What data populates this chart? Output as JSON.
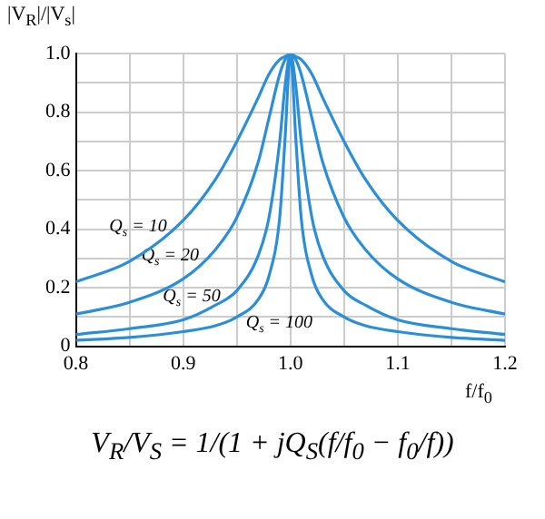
{
  "chart_data": {
    "type": "line",
    "xlabel": "f/f$_{0}$",
    "ylabel": "|V$_{R}$|/|V$_{s}$|",
    "x": [
      0.8,
      0.85,
      0.9,
      0.93,
      0.95,
      0.97,
      0.98,
      0.99,
      0.995,
      1.0,
      1.005,
      1.01,
      1.02,
      1.03,
      1.05,
      1.07,
      1.1,
      1.15,
      1.2
    ],
    "series": [
      {
        "name": "Q$_{s}$ = 10",
        "color": "#2a8fd8",
        "values": [
          0.22,
          0.29,
          0.43,
          0.57,
          0.7,
          0.85,
          0.93,
          0.98,
          0.99,
          1.0,
          0.99,
          0.98,
          0.93,
          0.85,
          0.7,
          0.57,
          0.43,
          0.29,
          0.22
        ]
      },
      {
        "name": "Q$_{s}$ = 20",
        "color": "#2a8fd8",
        "values": [
          0.11,
          0.15,
          0.23,
          0.33,
          0.44,
          0.63,
          0.78,
          0.93,
          0.98,
          1.0,
          0.98,
          0.93,
          0.78,
          0.63,
          0.44,
          0.33,
          0.23,
          0.15,
          0.11
        ]
      },
      {
        "name": "Q$_{s}$ = 50",
        "color": "#2a8fd8",
        "values": [
          0.04,
          0.06,
          0.09,
          0.14,
          0.19,
          0.31,
          0.44,
          0.7,
          0.89,
          1.0,
          0.89,
          0.7,
          0.44,
          0.31,
          0.19,
          0.14,
          0.09,
          0.06,
          0.04
        ]
      },
      {
        "name": "Q$_{s}$ = 100",
        "color": "#2a8fd8",
        "values": [
          0.02,
          0.03,
          0.05,
          0.07,
          0.1,
          0.16,
          0.24,
          0.44,
          0.71,
          1.0,
          0.71,
          0.44,
          0.24,
          0.16,
          0.1,
          0.07,
          0.05,
          0.03,
          0.02
        ]
      }
    ],
    "xlim": [
      0.8,
      1.2
    ],
    "xticks": [
      0.8,
      {
        "value": 0.85,
        "label": null
      },
      0.9,
      {
        "value": 0.95,
        "label": null
      },
      {
        "value": 1.0,
        "label": "1.0"
      },
      {
        "value": 1.05,
        "label": null
      },
      1.1,
      {
        "value": 1.15,
        "label": null
      },
      1.2
    ],
    "ylim": [
      0,
      1.0
    ],
    "yticks": [
      0,
      {
        "value": 0.1,
        "label": null
      },
      0.2,
      {
        "value": 0.3,
        "label": null
      },
      0.4,
      {
        "value": 0.5,
        "label": null
      },
      0.6,
      {
        "value": 0.7,
        "label": null
      },
      0.8,
      {
        "value": 0.9,
        "label": null
      },
      {
        "value": 1.0,
        "label": "1.0"
      }
    ],
    "grid": true,
    "marker": "none",
    "line_style": "solid",
    "legend": false,
    "annotations": [
      "V$_{R}$/V$_{S}$ = 1/(1 + jQ$_{S}$(f/f$_{0}$ − f$_{0}$/f))"
    ]
  }
}
